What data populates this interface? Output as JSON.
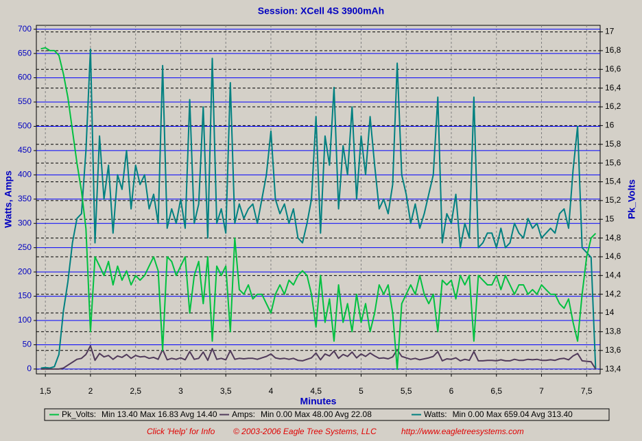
{
  "chart_data": {
    "type": "line",
    "title": "Session: XCell 4S 3900mAh",
    "xlabel": "Minutes",
    "ylabel": "Watts, Amps",
    "y2label": "Pk_Volts",
    "xlim": [
      1.4,
      7.65
    ],
    "xticks": [
      {
        "value": 1.5,
        "label": "1,5"
      },
      2,
      {
        "value": 2.5,
        "label": "2,5"
      },
      3,
      {
        "value": 3.5,
        "label": "3,5"
      },
      4,
      {
        "value": 4.5,
        "label": "4,5"
      },
      5,
      {
        "value": 5.5,
        "label": "5,5"
      },
      6,
      {
        "value": 6.5,
        "label": "6,5"
      },
      7,
      {
        "value": 7.5,
        "label": "7,5"
      }
    ],
    "ylim": [
      -10,
      708
    ],
    "yticks": [
      0,
      50,
      100,
      150,
      200,
      250,
      300,
      350,
      400,
      450,
      500,
      550,
      600,
      650,
      700
    ],
    "y2lim": [
      13.35,
      17.07
    ],
    "y2ticks": [
      {
        "value": 13.4,
        "label": "13,4"
      },
      {
        "value": 13.6,
        "label": "13,6"
      },
      {
        "value": 13.8,
        "label": "13,8"
      },
      14,
      {
        "value": 14.2,
        "label": "14,2"
      },
      {
        "value": 14.4,
        "label": "14,4"
      },
      {
        "value": 14.6,
        "label": "14,6"
      },
      {
        "value": 14.8,
        "label": "14,8"
      },
      15,
      {
        "value": 15.2,
        "label": "15,2"
      },
      {
        "value": 15.4,
        "label": "15,4"
      },
      {
        "value": 15.6,
        "label": "15,6"
      },
      {
        "value": 15.8,
        "label": "15,8"
      },
      16,
      {
        "value": 16.2,
        "label": "16,2"
      },
      {
        "value": 16.4,
        "label": "16,4"
      },
      {
        "value": 16.6,
        "label": "16,6"
      },
      {
        "value": 16.8,
        "label": "16,8"
      },
      17
    ],
    "grid": true,
    "x": [
      1.45,
      1.5,
      1.55,
      1.6,
      1.65,
      1.7,
      1.75,
      1.8,
      1.85,
      1.9,
      1.95,
      2.0,
      2.05,
      2.1,
      2.15,
      2.2,
      2.25,
      2.3,
      2.35,
      2.4,
      2.45,
      2.5,
      2.55,
      2.6,
      2.65,
      2.7,
      2.75,
      2.8,
      2.85,
      2.9,
      2.95,
      3.0,
      3.05,
      3.1,
      3.15,
      3.2,
      3.25,
      3.3,
      3.35,
      3.4,
      3.45,
      3.5,
      3.55,
      3.6,
      3.65,
      3.7,
      3.75,
      3.8,
      3.85,
      3.9,
      3.95,
      4.0,
      4.05,
      4.1,
      4.15,
      4.2,
      4.25,
      4.3,
      4.35,
      4.4,
      4.45,
      4.5,
      4.55,
      4.6,
      4.65,
      4.7,
      4.75,
      4.8,
      4.85,
      4.9,
      4.95,
      5.0,
      5.05,
      5.1,
      5.15,
      5.2,
      5.25,
      5.3,
      5.35,
      5.4,
      5.45,
      5.5,
      5.55,
      5.6,
      5.65,
      5.7,
      5.75,
      5.8,
      5.85,
      5.9,
      5.95,
      6.0,
      6.05,
      6.1,
      6.15,
      6.2,
      6.25,
      6.3,
      6.35,
      6.4,
      6.45,
      6.5,
      6.55,
      6.6,
      6.65,
      6.7,
      6.75,
      6.8,
      6.85,
      6.9,
      6.95,
      7.0,
      7.05,
      7.1,
      7.15,
      7.2,
      7.25,
      7.3,
      7.35,
      7.4,
      7.45,
      7.5,
      7.55,
      7.6
    ],
    "series": [
      {
        "name": "Pk_Volts:",
        "stats": "Min 13.40 Max 16.83 Avg 14.40",
        "color": "#00c040",
        "axis": "y2",
        "values": [
          16.82,
          16.83,
          16.8,
          16.8,
          16.75,
          16.55,
          16.3,
          15.95,
          15.6,
          15.3,
          14.9,
          13.8,
          14.6,
          14.5,
          14.4,
          14.55,
          14.3,
          14.5,
          14.35,
          14.45,
          14.3,
          14.4,
          14.35,
          14.4,
          14.5,
          14.6,
          14.45,
          13.6,
          14.6,
          14.55,
          14.4,
          14.5,
          14.6,
          14.0,
          14.4,
          14.55,
          14.1,
          14.6,
          13.7,
          14.5,
          14.4,
          14.5,
          13.8,
          14.8,
          14.25,
          14.2,
          14.3,
          14.15,
          14.2,
          14.2,
          14.1,
          14.0,
          14.2,
          14.3,
          14.2,
          14.35,
          14.3,
          14.4,
          14.45,
          14.4,
          14.2,
          13.85,
          14.4,
          13.9,
          14.15,
          13.7,
          14.3,
          13.9,
          14.1,
          13.8,
          14.2,
          13.9,
          14.1,
          13.8,
          14.0,
          14.3,
          14.2,
          14.3,
          14.0,
          13.4,
          14.1,
          14.2,
          14.3,
          14.2,
          14.4,
          14.2,
          14.1,
          14.2,
          13.8,
          14.35,
          14.3,
          14.35,
          14.15,
          14.4,
          14.3,
          14.4,
          13.7,
          14.4,
          14.35,
          14.3,
          14.3,
          14.4,
          14.25,
          14.4,
          14.3,
          14.2,
          14.3,
          14.3,
          14.2,
          14.25,
          14.2,
          14.3,
          14.25,
          14.2,
          14.2,
          14.1,
          14.05,
          14.15,
          13.9,
          13.7,
          14.2,
          14.6,
          14.8,
          14.85
        ]
      },
      {
        "name": "Amps:",
        "stats": "Min 0.00 Max 48.00 Avg 22.08",
        "color": "#503a5a",
        "values": [
          0,
          0,
          0,
          0,
          0,
          2,
          8,
          14,
          20,
          22,
          30,
          48,
          18,
          32,
          25,
          28,
          20,
          27,
          24,
          30,
          22,
          28,
          25,
          26,
          22,
          24,
          20,
          40,
          19,
          22,
          20,
          23,
          19,
          36,
          20,
          22,
          35,
          18,
          42,
          20,
          22,
          19,
          38,
          20,
          22,
          21,
          22,
          22,
          20,
          23,
          26,
          31,
          23,
          21,
          22,
          20,
          22,
          18,
          17,
          20,
          23,
          33,
          19,
          31,
          27,
          37,
          22,
          30,
          26,
          35,
          23,
          31,
          26,
          33,
          27,
          22,
          23,
          21,
          25,
          40,
          26,
          23,
          20,
          22,
          19,
          21,
          23,
          26,
          36,
          17,
          21,
          20,
          23,
          17,
          20,
          18,
          36,
          17,
          17,
          18,
          18,
          17,
          19,
          17,
          17,
          20,
          18,
          18,
          20,
          19,
          20,
          18,
          18,
          19,
          18,
          21,
          22,
          19,
          27,
          32,
          17,
          16,
          15,
          0
        ]
      },
      {
        "name": "Watts:",
        "stats": "Min 0.00 Max 659.04 Avg 313.40",
        "color": "#008080",
        "values": [
          2,
          3,
          2,
          5,
          30,
          120,
          180,
          260,
          310,
          320,
          450,
          659,
          260,
          480,
          350,
          420,
          280,
          400,
          370,
          450,
          330,
          420,
          380,
          400,
          330,
          360,
          300,
          625,
          290,
          330,
          300,
          350,
          290,
          555,
          300,
          340,
          540,
          270,
          640,
          300,
          330,
          280,
          590,
          300,
          340,
          310,
          330,
          340,
          300,
          350,
          400,
          490,
          350,
          320,
          340,
          300,
          330,
          270,
          260,
          300,
          350,
          520,
          280,
          480,
          420,
          580,
          330,
          460,
          400,
          540,
          350,
          480,
          400,
          520,
          420,
          330,
          350,
          320,
          380,
          630,
          400,
          360,
          300,
          340,
          290,
          320,
          360,
          400,
          560,
          260,
          320,
          300,
          360,
          250,
          300,
          270,
          560,
          250,
          260,
          280,
          280,
          250,
          290,
          250,
          260,
          300,
          280,
          270,
          310,
          290,
          300,
          270,
          280,
          290,
          280,
          320,
          330,
          290,
          410,
          500,
          250,
          240,
          230,
          0
        ]
      }
    ],
    "footer": [
      "Click 'Help' for Info",
      "© 2003-2006 Eagle Tree Systems, LLC",
      "http://www.eagletreesystems.com"
    ]
  }
}
